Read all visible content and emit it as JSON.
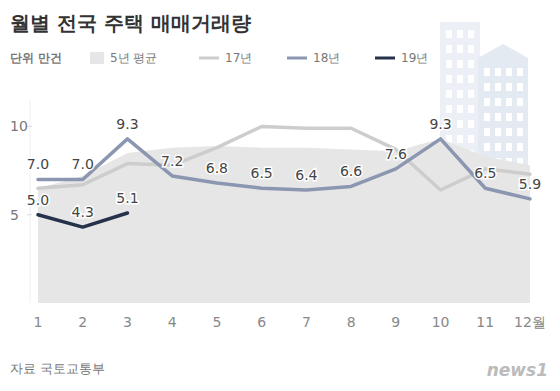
{
  "chart_data": {
    "type": "line",
    "title": "월별 전국 주택 매매거래량",
    "unit_label": "단위 만건",
    "source": "자료 국토교통부",
    "logo": "news1",
    "categories": [
      "1",
      "2",
      "3",
      "4",
      "5",
      "6",
      "7",
      "8",
      "9",
      "10",
      "11",
      "12월"
    ],
    "ylim": [
      0,
      11.5
    ],
    "yticks": [
      5,
      10
    ],
    "grid": false,
    "series": [
      {
        "name": "5년 평균",
        "type": "area",
        "color": "#e6e6e6",
        "values": [
          6.5,
          7.2,
          8.5,
          8.8,
          8.9,
          8.8,
          8.8,
          8.7,
          8.6,
          9.3,
          8.3,
          7.8
        ]
      },
      {
        "name": "17년",
        "type": "line",
        "color": "#cdcdcd",
        "values": [
          6.5,
          6.7,
          7.9,
          7.8,
          8.8,
          10.0,
          9.9,
          9.9,
          8.7,
          6.4,
          7.6,
          7.3
        ]
      },
      {
        "name": "18년",
        "type": "line",
        "color": "#8b97b1",
        "data_labels": true,
        "values": [
          7.0,
          7.0,
          9.3,
          7.2,
          6.8,
          6.5,
          6.4,
          6.6,
          7.6,
          9.3,
          6.5,
          5.9
        ]
      },
      {
        "name": "19년",
        "type": "line",
        "color": "#25324a",
        "data_labels": true,
        "values": [
          5.0,
          4.3,
          5.1,
          null,
          null,
          null,
          null,
          null,
          null,
          null,
          null,
          null
        ]
      }
    ]
  }
}
